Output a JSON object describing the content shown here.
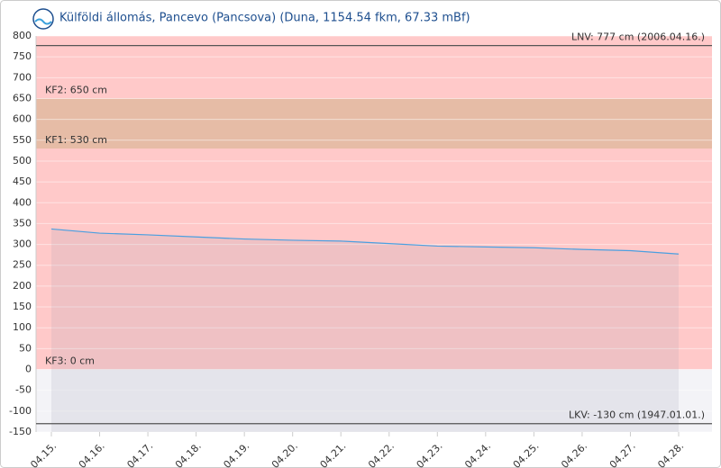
{
  "chart_data": {
    "type": "line",
    "title": "Külföldi állomás, Pancevo (Pancsova) (Duna, 1154.54 fkm, 67.33 mBf)",
    "categories": [
      "04.15.",
      "04.16.",
      "04.17.",
      "04.18.",
      "04.19.",
      "04.20.",
      "04.21.",
      "04.22.",
      "04.23.",
      "04.24.",
      "04.25.",
      "04.26.",
      "04.27.",
      "04.28."
    ],
    "series": [
      {
        "color": "#4a9fe0",
        "values": [
          337,
          327,
          323,
          318,
          313,
          310,
          308,
          302,
          296,
          294,
          292,
          288,
          285,
          277
        ]
      }
    ],
    "ylim": [
      -150,
      800
    ],
    "yticks": [
      -150,
      -100,
      -50,
      0,
      50,
      100,
      150,
      200,
      250,
      300,
      350,
      400,
      450,
      500,
      550,
      600,
      650,
      700,
      750,
      800
    ],
    "grid": true,
    "bands": [
      {
        "from": 0,
        "to": 800,
        "color": "#ffc9c9"
      },
      {
        "from": 530,
        "to": 650,
        "color": "#e6bca6"
      },
      {
        "from": -150,
        "to": 0,
        "color": "#f3f3f7"
      }
    ],
    "annotations": [
      {
        "value": 777,
        "label": "LNV: 777 cm (2006.04.16.)",
        "side": "right",
        "line": true
      },
      {
        "value": 650,
        "label": "KF2: 650 cm",
        "side": "left",
        "line": false
      },
      {
        "value": 530,
        "label": "KF1: 530 cm",
        "side": "left",
        "line": false
      },
      {
        "value": 0,
        "label": "KF3: 0 cm",
        "side": "left",
        "line": false
      },
      {
        "value": -130,
        "label": "LKV: -130 cm (1947.01.01.)",
        "side": "right",
        "line": true
      }
    ]
  }
}
